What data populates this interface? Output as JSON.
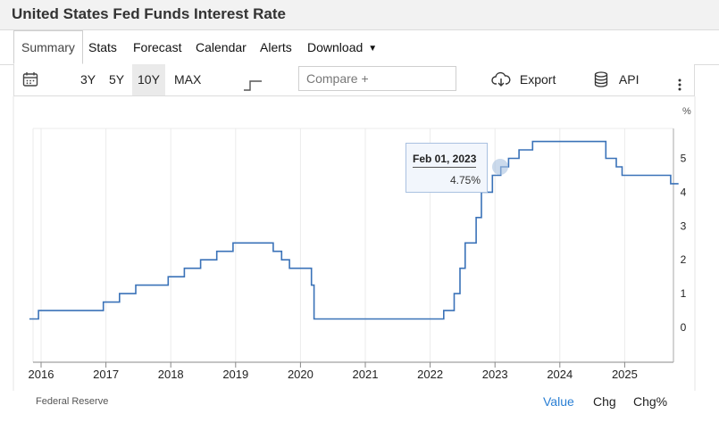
{
  "header": {
    "title": "United States Fed Funds Interest Rate"
  },
  "tabs": [
    {
      "label": "Summary"
    },
    {
      "label": "Stats"
    },
    {
      "label": "Forecast"
    },
    {
      "label": "Calendar"
    },
    {
      "label": "Alerts"
    },
    {
      "label": "Download"
    }
  ],
  "toolbar": {
    "ranges": [
      "3Y",
      "5Y",
      "10Y",
      "MAX"
    ],
    "active_range": "10Y",
    "compare_placeholder": "Compare +",
    "export_label": "Export",
    "api_label": "API"
  },
  "tooltip": {
    "date": "Feb 01, 2023",
    "value": "4.75%"
  },
  "footer": {
    "source": "Federal Reserve",
    "tabs": [
      "Value",
      "Chg",
      "Chg%"
    ],
    "active_tab": "Value"
  },
  "colors": {
    "line": "#3a72b8",
    "accent": "#2a7fd4",
    "tooltip_bg": "#f2f6fc"
  },
  "chart_data": {
    "type": "line",
    "step": true,
    "unit_label": "%",
    "x_ticks": [
      "2016",
      "2017",
      "2018",
      "2019",
      "2020",
      "2021",
      "2022",
      "2023",
      "2024",
      "2025"
    ],
    "y_ticks": [
      0,
      1,
      2,
      3,
      4,
      5
    ],
    "ylim": [
      -1,
      6
    ],
    "xlim": [
      2015.82,
      2025.83
    ],
    "grid": "vertical",
    "series": [
      {
        "x": [
          2015.82,
          2015.96,
          2016.96,
          2017.21,
          2017.46,
          2017.96,
          2018.21,
          2018.46,
          2018.71,
          2018.96,
          2019.58,
          2019.71,
          2019.83,
          2020.17,
          2020.21,
          2022.21,
          2022.37,
          2022.46,
          2022.54,
          2022.71,
          2022.79,
          2022.96,
          2023.09,
          2023.21,
          2023.37,
          2023.58,
          2024.71,
          2024.87,
          2024.96,
          2025.71,
          2025.83
        ],
        "y": [
          0.25,
          0.5,
          0.75,
          1.0,
          1.25,
          1.5,
          1.75,
          2.0,
          2.25,
          2.5,
          2.25,
          2.0,
          1.75,
          1.25,
          0.25,
          0.5,
          1.0,
          1.75,
          2.5,
          3.25,
          4.0,
          4.5,
          4.75,
          5.0,
          5.25,
          5.5,
          5.0,
          4.75,
          4.5,
          4.25,
          4.25
        ]
      }
    ]
  }
}
